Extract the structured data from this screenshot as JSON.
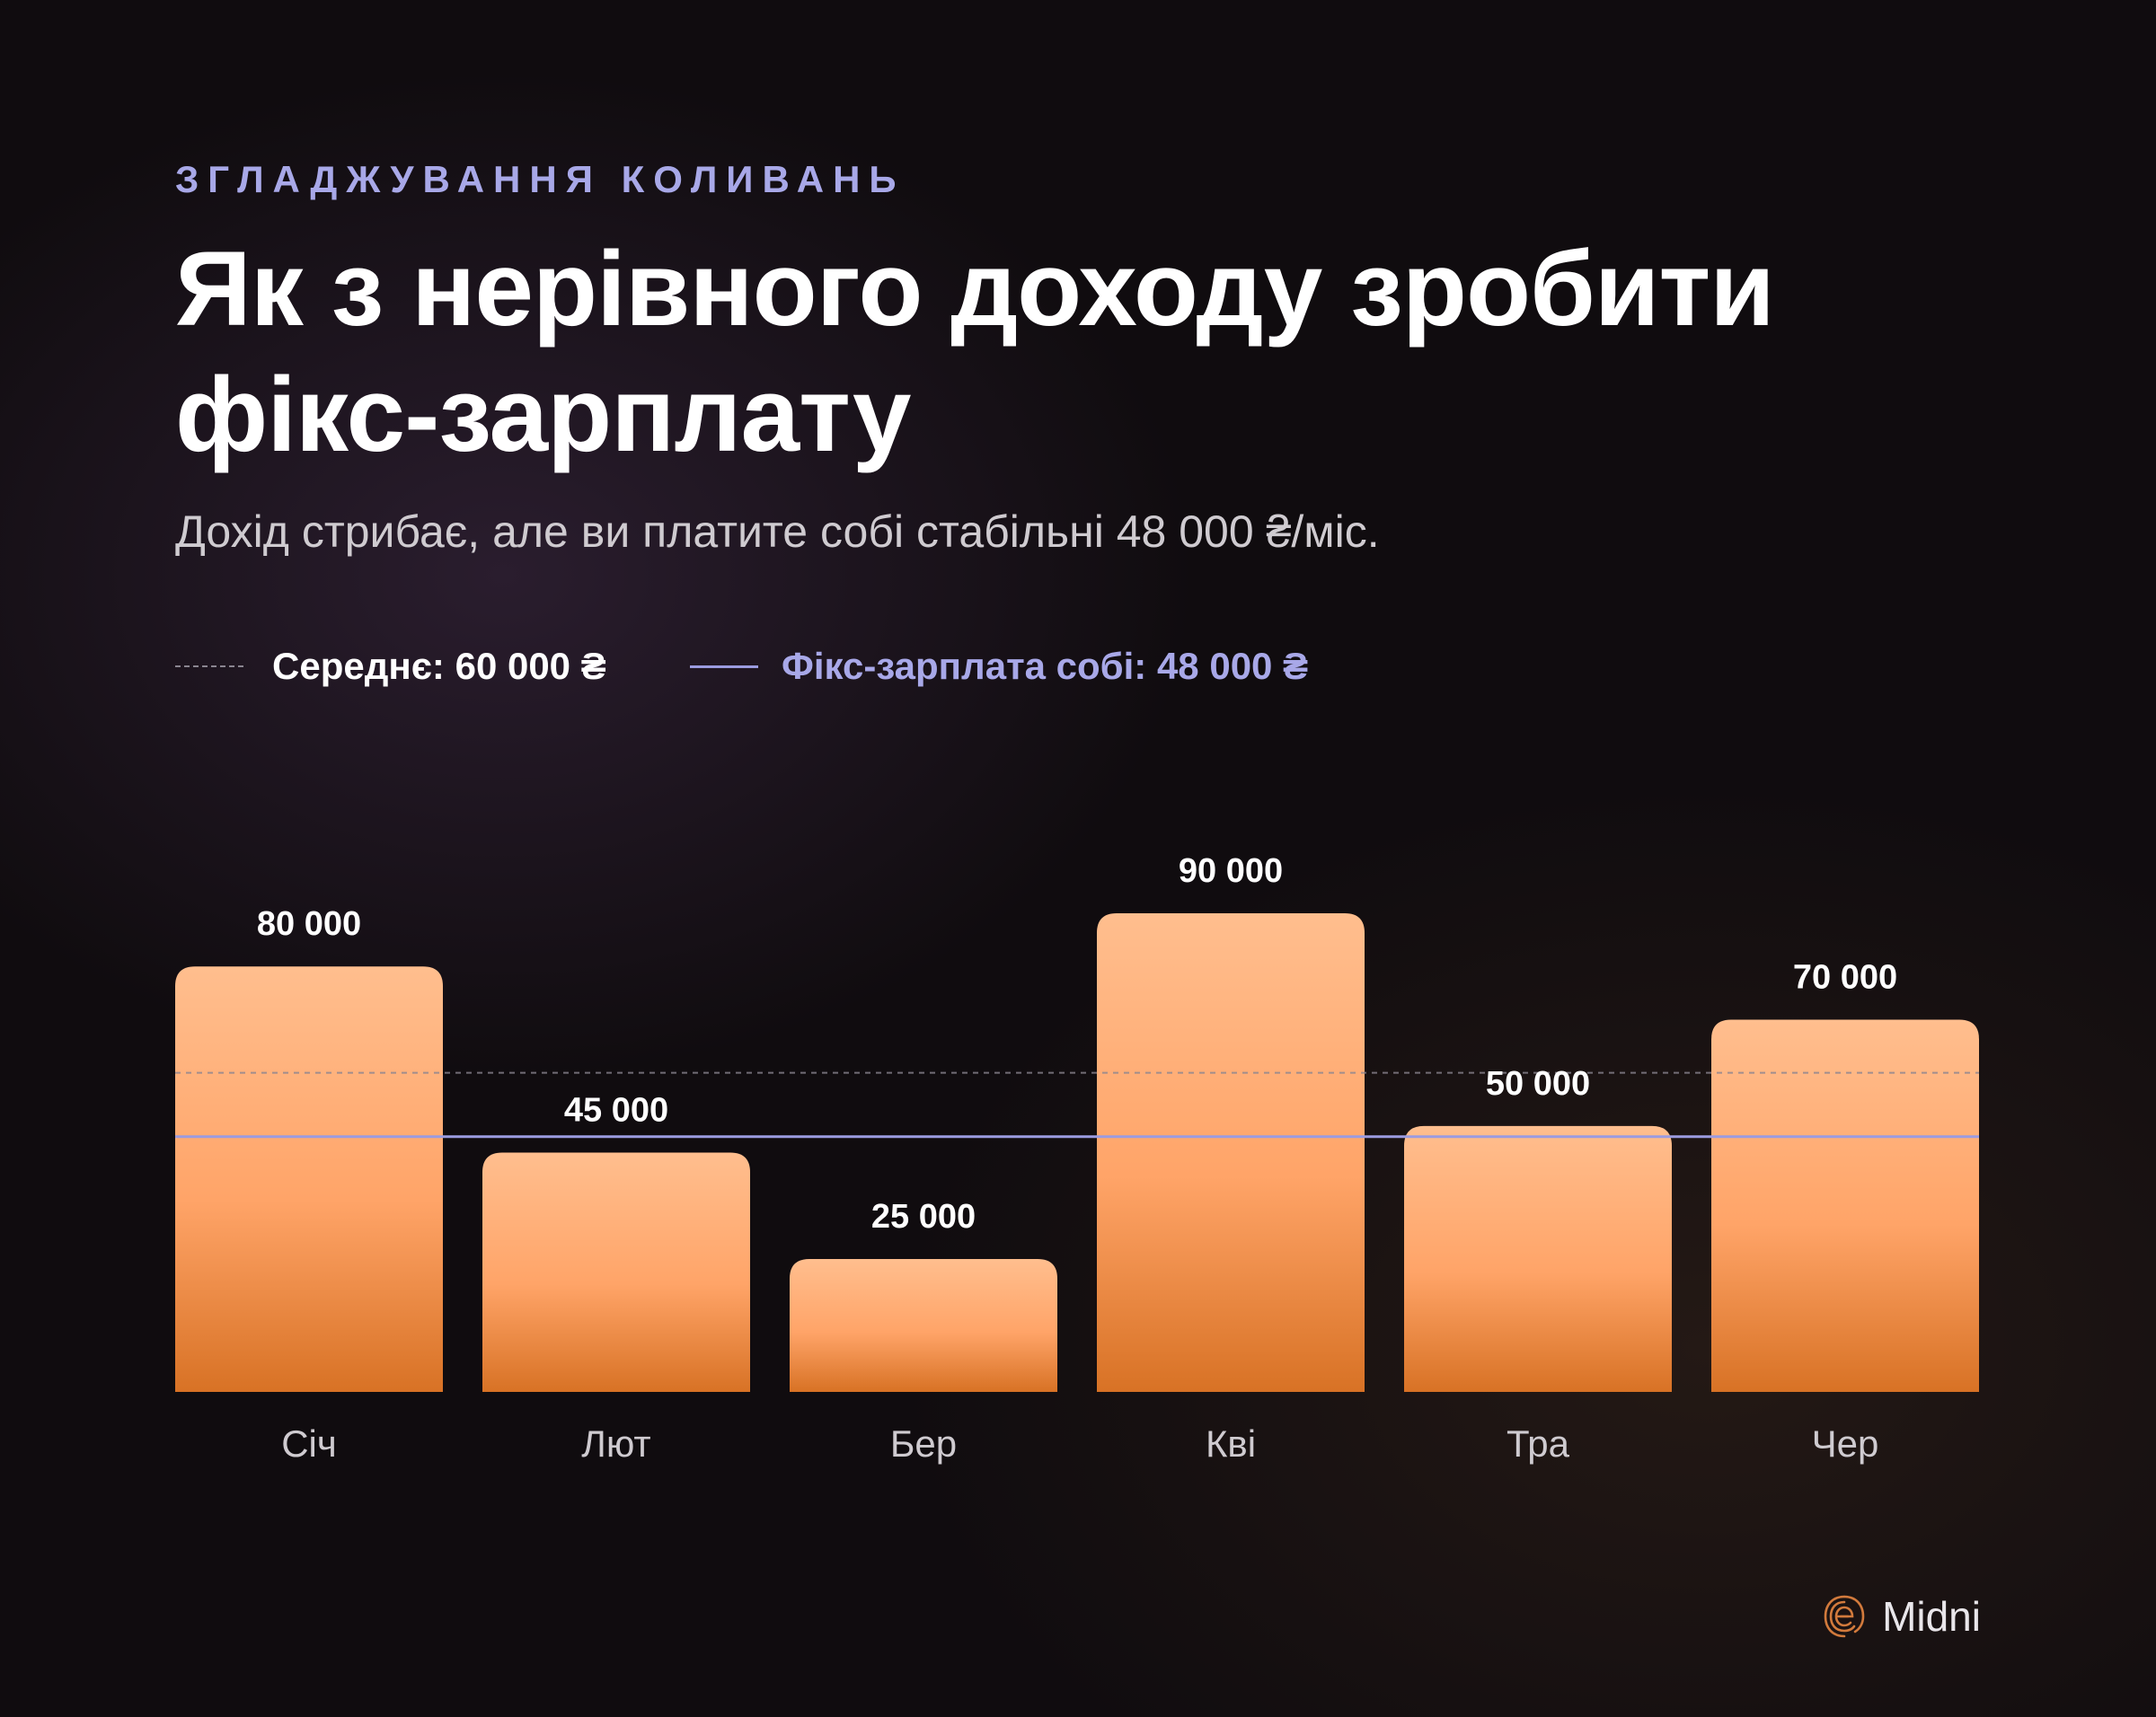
{
  "header": {
    "eyebrow": "ЗГЛАДЖУВАННЯ КОЛИВАНЬ",
    "title": "Як з нерівного доходу зробити фікс-зарплату",
    "subtitle": "Дохід стрибає, але ви платите собі стабільні 48 000 ₴/міс."
  },
  "legend": {
    "average_label": "Середнє: 60 000 ₴",
    "fixed_label": "Фікс-зарплата собі: 48 000 ₴"
  },
  "brand": {
    "name": "Midni",
    "logo_icon": "fingerprint-e-icon"
  },
  "colors": {
    "bar_top": "#ffbe8e",
    "bar_bottom": "#d87225",
    "fixed_line": "#9b9be0",
    "average_line": "#8a8590",
    "accent": "#a8a8e8"
  },
  "chart_data": {
    "type": "bar",
    "categories": [
      "Січ",
      "Лют",
      "Бер",
      "Кві",
      "Тра",
      "Чер"
    ],
    "values": [
      80000,
      45000,
      25000,
      90000,
      50000,
      70000
    ],
    "value_labels": [
      "80 000",
      "45 000",
      "25 000",
      "90 000",
      "50 000",
      "70 000"
    ],
    "reference_lines": [
      {
        "value": 60000,
        "style": "dashed"
      },
      {
        "value": 48000,
        "style": "solid"
      }
    ],
    "grid": false,
    "legend_position": "top-left"
  }
}
